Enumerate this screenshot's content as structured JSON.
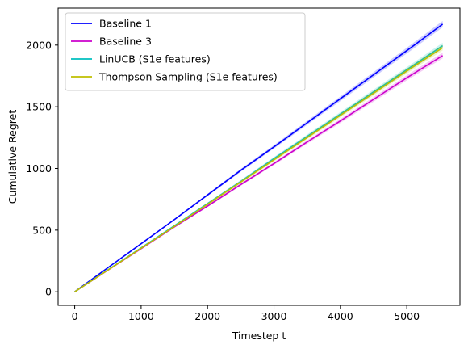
{
  "chart_data": {
    "type": "line",
    "title": "",
    "xlabel": "Timestep t",
    "ylabel": "Cumulative Regret",
    "xlim": [
      -250,
      5800
    ],
    "ylim": [
      -110,
      2300
    ],
    "xticks": [
      0,
      1000,
      2000,
      3000,
      4000,
      5000
    ],
    "yticks": [
      0,
      500,
      1000,
      1500,
      2000
    ],
    "grid": false,
    "legend_position": "top-left",
    "series": [
      {
        "name": "Baseline 1",
        "color": "#0000ff",
        "x": [
          0,
          500,
          1000,
          1500,
          2000,
          2500,
          3000,
          3500,
          4000,
          4500,
          5000,
          5540
        ],
        "y": [
          0,
          195,
          390,
          585,
          785,
          985,
          1175,
          1370,
          1565,
          1760,
          1955,
          2170
        ]
      },
      {
        "name": "Baseline 3",
        "color": "#cc00cc",
        "x": [
          0,
          500,
          1000,
          1500,
          2000,
          2500,
          3000,
          3500,
          4000,
          4500,
          5000,
          5540
        ],
        "y": [
          0,
          175,
          350,
          525,
          695,
          870,
          1040,
          1215,
          1385,
          1560,
          1735,
          1915
        ]
      },
      {
        "name": "LinUCB (S1e features)",
        "color": "#00bfbf",
        "x": [
          0,
          500,
          1000,
          1500,
          2000,
          2500,
          3000,
          3500,
          4000,
          4500,
          5000,
          5540
        ],
        "y": [
          0,
          178,
          356,
          535,
          715,
          895,
          1080,
          1260,
          1440,
          1620,
          1800,
          1995
        ]
      },
      {
        "name": "Thompson Sampling (S1e features)",
        "color": "#bfbf00",
        "x": [
          0,
          500,
          1000,
          1500,
          2000,
          2500,
          3000,
          3500,
          4000,
          4500,
          5000,
          5540
        ],
        "y": [
          0,
          176,
          353,
          530,
          710,
          890,
          1070,
          1250,
          1430,
          1610,
          1790,
          1980
        ]
      }
    ]
  }
}
